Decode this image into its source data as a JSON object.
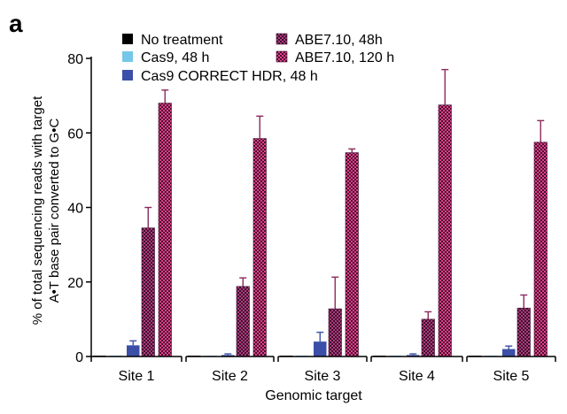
{
  "panel_label": "a",
  "chart_data": {
    "type": "bar",
    "title": "",
    "xlabel": "Genomic target",
    "ylabel_line1": "% of total sequencing reads with target",
    "ylabel_line2": "A•T base pair converted to G•C",
    "ylim": [
      0,
      80
    ],
    "yticks": [
      0,
      20,
      40,
      60,
      80
    ],
    "categories": [
      "Site 1",
      "Site 2",
      "Site 3",
      "Site 4",
      "Site 5"
    ],
    "series": [
      {
        "name": "No treatment",
        "color": "#000000",
        "pattern": "solid",
        "values": [
          0.1,
          0.1,
          0.1,
          0.1,
          0.1
        ],
        "errors": [
          0,
          0,
          0,
          0,
          0
        ]
      },
      {
        "name": "Cas9, 48 h",
        "color": "#74c7e8",
        "pattern": "solid",
        "values": [
          0.1,
          0.1,
          0.1,
          0.1,
          0.1
        ],
        "errors": [
          0,
          0,
          0,
          0,
          0
        ]
      },
      {
        "name": "Cas9 CORRECT HDR, 48 h",
        "color": "#3b4fa8",
        "pattern": "solid",
        "values": [
          3.0,
          0.4,
          4.0,
          0.4,
          2.0
        ],
        "errors": [
          1.2,
          0.3,
          2.5,
          0.3,
          0.8
        ]
      },
      {
        "name": "ABE7.10, 48h",
        "color": "#8a2a5c",
        "pattern": "checker",
        "values": [
          34.5,
          18.8,
          12.8,
          10.0,
          13.0
        ],
        "errors": [
          5.5,
          2.3,
          8.5,
          2.0,
          3.5
        ]
      },
      {
        "name": "ABE7.10, 120 h",
        "color": "#c2306e",
        "pattern": "checker",
        "values": [
          68.0,
          58.5,
          54.7,
          67.5,
          57.5
        ],
        "errors": [
          3.5,
          6.0,
          1.0,
          9.5,
          5.8
        ]
      }
    ],
    "legend_position": "top"
  }
}
